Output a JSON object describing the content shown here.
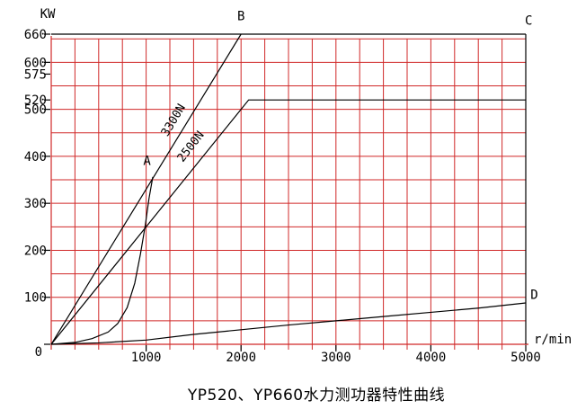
{
  "chart_data": {
    "type": "line",
    "title": "YP520、YP660水力测功器特性曲线",
    "xlabel": "r/min",
    "ylabel": "KW",
    "xlim": [
      0,
      5000
    ],
    "ylim": [
      0,
      660
    ],
    "x_ticks": [
      1000,
      2000,
      3000,
      4000,
      5000
    ],
    "y_ticks": [
      0,
      100,
      200,
      300,
      400,
      500,
      520,
      575,
      600,
      660
    ],
    "x_grid_step": 250,
    "y_grid_step": 50,
    "y_grid_max": 650,
    "grid_on": true,
    "legend": "none",
    "grid_color": "#d02828",
    "curve_color": "#000000",
    "background_color": "#ffffff",
    "series": [
      {
        "name": "3300N constant-torque line (O-B)",
        "points": [
          [
            0,
            0
          ],
          [
            2000,
            660
          ]
        ]
      },
      {
        "name": "660 KW power limit line (through B to C)",
        "points": [
          [
            0,
            660
          ],
          [
            5000,
            660
          ]
        ]
      },
      {
        "name": "2500N constant-torque line with 520 KW limit",
        "points": [
          [
            0,
            0
          ],
          [
            2080,
            520
          ],
          [
            5000,
            520
          ]
        ]
      },
      {
        "name": "full water-charge curve (O to A)",
        "points": [
          [
            0,
            0
          ],
          [
            250,
            4
          ],
          [
            430,
            12
          ],
          [
            600,
            26
          ],
          [
            700,
            44
          ],
          [
            800,
            78
          ],
          [
            880,
            130
          ],
          [
            940,
            192
          ],
          [
            990,
            252
          ],
          [
            1030,
            310
          ],
          [
            1070,
            356
          ]
        ]
      },
      {
        "name": "minimum absorbed power curve (O to D)",
        "points": [
          [
            0,
            0
          ],
          [
            500,
            3
          ],
          [
            1000,
            9
          ],
          [
            1500,
            21
          ],
          [
            2000,
            31
          ],
          [
            2500,
            41
          ],
          [
            3000,
            50
          ],
          [
            3500,
            59
          ],
          [
            4000,
            68
          ],
          [
            4500,
            77
          ],
          [
            5000,
            88
          ]
        ]
      },
      {
        "name": "5000 r/min boundary (C down to axis)",
        "points": [
          [
            5000,
            660
          ],
          [
            5000,
            0
          ]
        ]
      }
    ],
    "annotations": [
      {
        "text": "A",
        "x": 1010,
        "y": 382,
        "rot": 0
      },
      {
        "text": "B",
        "x": 2000,
        "y": 690,
        "rot": 0
      },
      {
        "text": "C",
        "x": 5030,
        "y": 680,
        "rot": 0
      },
      {
        "text": "D",
        "x": 5090,
        "y": 97,
        "rot": 0
      },
      {
        "text": "3300N",
        "x": 1320,
        "y": 473,
        "rot": -59
      },
      {
        "text": "2500N",
        "x": 1500,
        "y": 416,
        "rot": -52
      }
    ]
  }
}
